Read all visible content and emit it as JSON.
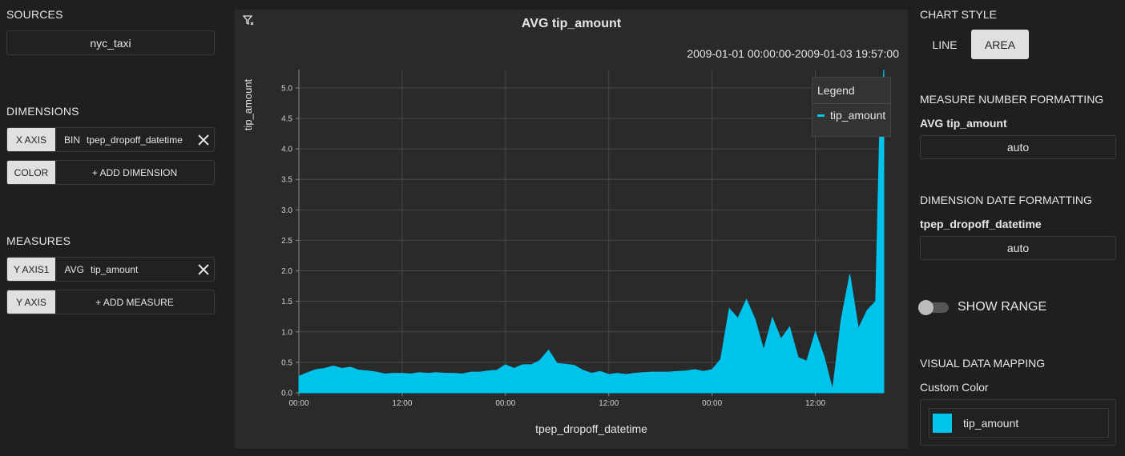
{
  "left": {
    "sources_title": "SOURCES",
    "source_name": "nyc_taxi",
    "dimensions_title": "DIMENSIONS",
    "x_axis": {
      "tag": "X AXIS",
      "agg": "BIN",
      "field": "tpep_dropoff_datetime"
    },
    "color": {
      "tag": "COLOR",
      "add": "+ ADD DIMENSION"
    },
    "measures_title": "MEASURES",
    "y_axis1": {
      "tag": "Y AXIS1",
      "agg": "AVG",
      "field": "tip_amount"
    },
    "y_axis": {
      "tag": "Y AXIS",
      "add": "+ ADD MEASURE"
    }
  },
  "chart": {
    "title": "AVG tip_amount",
    "date_range": "2009-01-01 00:00:00-2009-01-03 19:57:00",
    "legend_title": "Legend",
    "legend_item": "tip_amount"
  },
  "chart_data": {
    "type": "area",
    "title": "AVG tip_amount",
    "xlabel": "tpep_dropoff_datetime",
    "ylabel": "tip_amount",
    "ylim": [
      0,
      5.3
    ],
    "y_ticks": [
      "0.0",
      "0.5",
      "1.0",
      "1.5",
      "2.0",
      "2.5",
      "3.0",
      "3.5",
      "4.0",
      "4.5",
      "5.0"
    ],
    "x_tick_labels": [
      "00:00",
      "12:00",
      "00:00",
      "12:00",
      "00:00",
      "12:00"
    ],
    "x_ticks_hours": [
      0,
      12,
      24,
      36,
      48,
      60
    ],
    "xlim_hours": [
      0,
      67.95
    ],
    "grid": true,
    "legend": "top-right",
    "series": [
      {
        "name": "tip_amount",
        "color": "#00c3ec",
        "x_hours": [
          0,
          1,
          2,
          3,
          4,
          5,
          6,
          7,
          8,
          9,
          10,
          11,
          12,
          13,
          14,
          15,
          16,
          17,
          18,
          19,
          20,
          21,
          22,
          23,
          24,
          25,
          26,
          27,
          28,
          29,
          30,
          31,
          32,
          33,
          34,
          35,
          36,
          37,
          38,
          39,
          40,
          41,
          42,
          43,
          44,
          45,
          46,
          47,
          48,
          49,
          50,
          51,
          52,
          53,
          54,
          55,
          56,
          57,
          58,
          59,
          60,
          61,
          62,
          63,
          64,
          65,
          66,
          67,
          67.5,
          67.95
        ],
        "values": [
          0.27,
          0.33,
          0.38,
          0.4,
          0.44,
          0.4,
          0.42,
          0.37,
          0.36,
          0.34,
          0.31,
          0.32,
          0.32,
          0.31,
          0.33,
          0.32,
          0.33,
          0.32,
          0.32,
          0.31,
          0.34,
          0.34,
          0.36,
          0.37,
          0.46,
          0.4,
          0.46,
          0.46,
          0.53,
          0.7,
          0.48,
          0.47,
          0.45,
          0.37,
          0.32,
          0.35,
          0.3,
          0.32,
          0.3,
          0.32,
          0.33,
          0.34,
          0.34,
          0.34,
          0.35,
          0.36,
          0.38,
          0.35,
          0.38,
          0.55,
          1.38,
          1.22,
          1.53,
          1.2,
          0.7,
          1.23,
          0.88,
          1.08,
          0.58,
          0.52,
          1.0,
          0.6,
          0.05,
          1.2,
          1.94,
          1.05,
          1.35,
          1.5,
          4.5,
          5.3
        ]
      }
    ]
  },
  "right": {
    "chart_style_title": "CHART STYLE",
    "line_label": "LINE",
    "area_label": "AREA",
    "measure_format_title": "MEASURE NUMBER FORMATTING",
    "measure_field": "AVG tip_amount",
    "measure_format_value": "auto",
    "dimension_format_title": "DIMENSION DATE FORMATTING",
    "dimension_field": "tpep_dropoff_datetime",
    "dimension_format_value": "auto",
    "show_range_label": "SHOW RANGE",
    "show_range_on": false,
    "visual_mapping_title": "VISUAL DATA MAPPING",
    "custom_color_label": "Custom Color",
    "custom_color_field": "tip_amount",
    "custom_color_hex": "#00c3ec"
  }
}
